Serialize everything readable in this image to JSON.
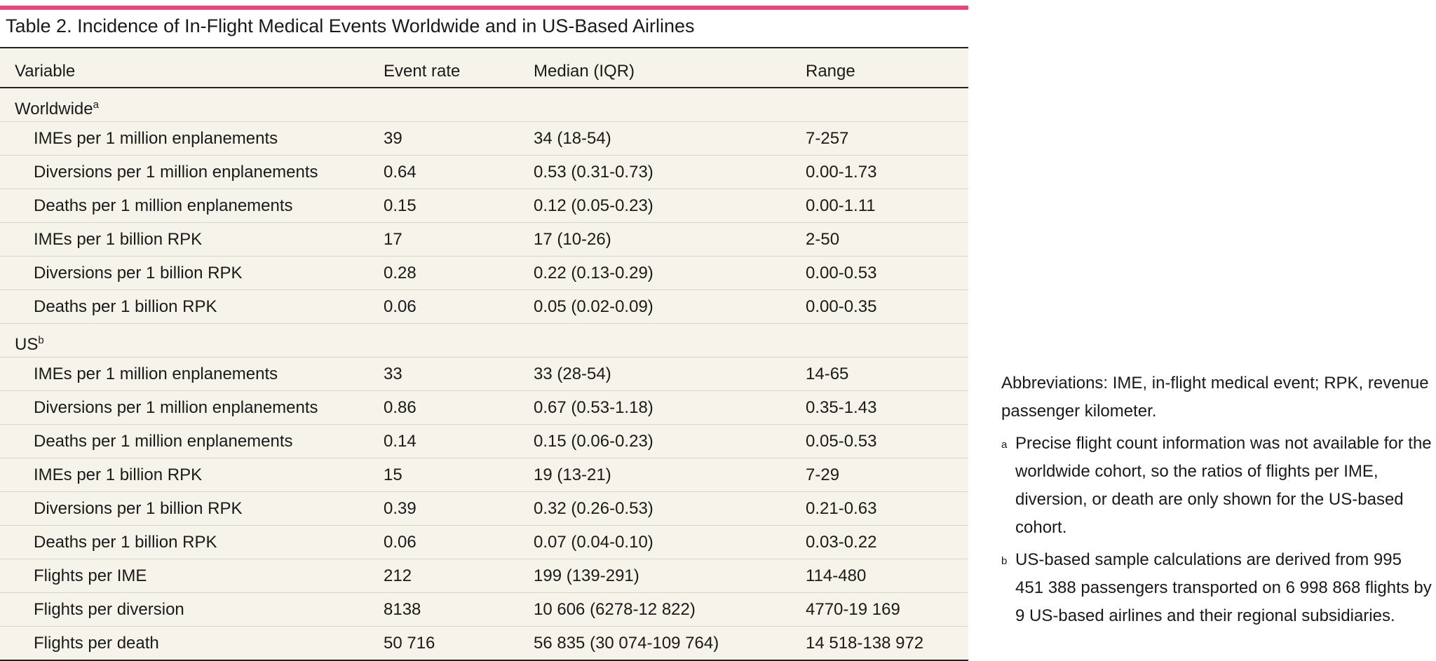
{
  "table": {
    "title": "Table 2. Incidence of In-Flight Medical Events Worldwide and in US-Based Airlines",
    "columns": [
      "Variable",
      "Event rate",
      "Median (IQR)",
      "Range"
    ],
    "groups": [
      {
        "label": "Worldwide",
        "note": "a",
        "rows": [
          [
            "IMEs per 1 million enplanements",
            "39",
            "34 (18-54)",
            "7-257"
          ],
          [
            "Diversions per 1 million enplanements",
            "0.64",
            "0.53 (0.31-0.73)",
            "0.00-1.73"
          ],
          [
            "Deaths per 1 million enplanements",
            "0.15",
            "0.12 (0.05-0.23)",
            "0.00-1.11"
          ],
          [
            "IMEs per 1 billion RPK",
            "17",
            "17 (10-26)",
            "2-50"
          ],
          [
            "Diversions per 1 billion RPK",
            "0.28",
            "0.22 (0.13-0.29)",
            "0.00-0.53"
          ],
          [
            "Deaths per 1 billion RPK",
            "0.06",
            "0.05 (0.02-0.09)",
            "0.00-0.35"
          ]
        ]
      },
      {
        "label": "US",
        "note": "b",
        "rows": [
          [
            "IMEs per 1 million enplanements",
            "33",
            "33 (28-54)",
            "14-65"
          ],
          [
            "Diversions per 1 million enplanements",
            "0.86",
            "0.67 (0.53-1.18)",
            "0.35-1.43"
          ],
          [
            "Deaths per 1 million enplanements",
            "0.14",
            "0.15 (0.06-0.23)",
            "0.05-0.53"
          ],
          [
            "IMEs per 1 billion RPK",
            "15",
            "19 (13-21)",
            "7-29"
          ],
          [
            "Diversions per 1 billion RPK",
            "0.39",
            "0.32 (0.26-0.53)",
            "0.21-0.63"
          ],
          [
            "Deaths per 1 billion RPK",
            "0.06",
            "0.07 (0.04-0.10)",
            "0.03-0.22"
          ],
          [
            "Flights per IME",
            "212",
            "199 (139-291)",
            "114-480"
          ],
          [
            "Flights per diversion",
            "8138",
            "10 606 (6278-12 822)",
            "4770-19 169"
          ],
          [
            "Flights per death",
            "50 716",
            "56 835 (30 074-109 764)",
            "14 518-138 972"
          ]
        ]
      }
    ]
  },
  "footnotes": {
    "abbreviations": "Abbreviations: IME, in-flight medical event; RPK, revenue passenger kilometer.",
    "notes": [
      {
        "mark": "a",
        "text": "Precise flight count information was not available for the worldwide cohort, so the ratios of flights per IME, diversion, or death are only shown for the US-based cohort."
      },
      {
        "mark": "b",
        "text": "US-based sample calculations are derived from 995 451 388 passengers transported on 6 998 868 flights by 9 US-based airlines and their regional subsidiaries."
      }
    ]
  }
}
